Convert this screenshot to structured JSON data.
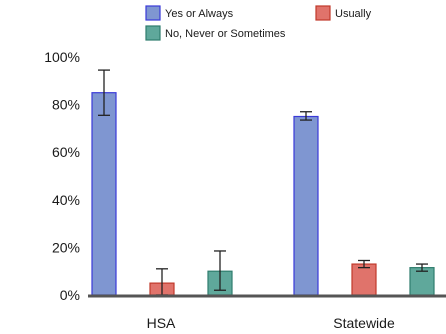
{
  "chart_data": {
    "type": "bar",
    "categories": [
      "HSA",
      "Statewide"
    ],
    "series": [
      {
        "name": "Yes or Always",
        "values": [
          85,
          75
        ],
        "error_low": [
          75.5,
          73.5
        ],
        "error_high": [
          94.5,
          77
        ],
        "fill": "#7f96d1",
        "stroke": "#3a3ad8"
      },
      {
        "name": "Usually",
        "values": [
          5,
          13
        ],
        "error_low": [
          0,
          11.5
        ],
        "error_high": [
          11,
          14.5
        ],
        "fill": "#e0736b",
        "stroke": "#c0392b"
      },
      {
        "name": "No, Never or Sometimes",
        "values": [
          10,
          11.5
        ],
        "error_low": [
          2,
          10
        ],
        "error_high": [
          18.5,
          13
        ],
        "fill": "#5fa89b",
        "stroke": "#2e7d6d"
      }
    ],
    "ylim": [
      0,
      100
    ],
    "yticks": [
      0,
      20,
      40,
      60,
      80,
      100
    ],
    "ytick_labels": [
      "0%",
      "20%",
      "40%",
      "60%",
      "80%",
      "100%"
    ],
    "legend_position": "top",
    "grid": false
  }
}
